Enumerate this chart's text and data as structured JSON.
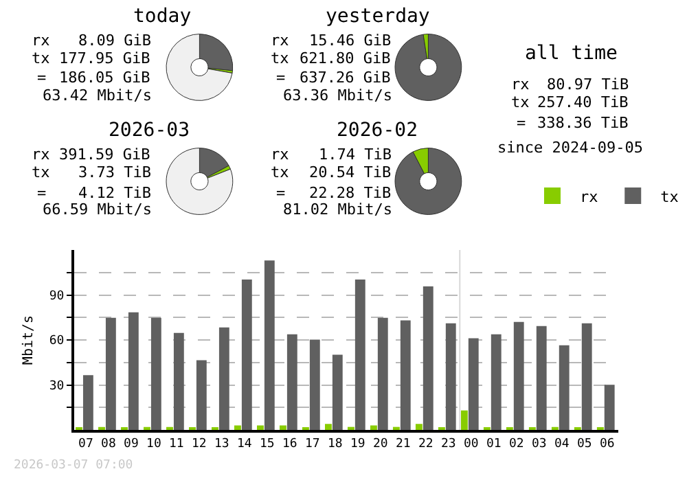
{
  "chart_data": [
    {
      "type": "donut",
      "title": "today",
      "categories": [
        null,
        null,
        null
      ],
      "values": [
        26.6,
        1.2,
        72.2
      ],
      "colors": [
        "#606060",
        "#88cc00",
        "#f0f0f0"
      ],
      "annotations": [
        "rx",
        "8.09 GiB",
        "tx",
        "177.95 GiB",
        "=",
        "186.05 GiB",
        "63.42 Mbit/s"
      ]
    },
    {
      "type": "donut",
      "title": "yesterday",
      "categories": [
        null,
        null
      ],
      "values": [
        97.6,
        2.4
      ],
      "colors": [
        "#606060",
        "#88cc00"
      ],
      "annotations": [
        "rx",
        "15.46 GiB",
        "tx",
        "621.80 GiB",
        "=",
        "637.26 GiB",
        "63.36 Mbit/s"
      ]
    },
    {
      "type": "donut",
      "title": "2026-03",
      "categories": [
        null,
        null,
        null
      ],
      "values": [
        17.2,
        1.8,
        81.0
      ],
      "colors": [
        "#606060",
        "#88cc00",
        "#f0f0f0"
      ],
      "annotations": [
        "rx",
        "391.59 GiB",
        "tx",
        "3.73 TiB",
        "=",
        "4.12 TiB",
        "66.59 Mbit/s"
      ]
    },
    {
      "type": "donut",
      "title": "2026-02",
      "categories": [
        null,
        null
      ],
      "values": [
        92.4,
        7.6
      ],
      "colors": [
        "#606060",
        "#88cc00"
      ],
      "annotations": [
        "rx",
        "1.74 TiB",
        "tx",
        "20.54 TiB",
        "=",
        "22.28 TiB",
        "81.02 Mbit/s"
      ]
    },
    {
      "type": "other",
      "title": "all time",
      "annotations": [
        "rx",
        "80.97 TiB",
        "tx",
        "257.40 TiB",
        "=",
        "338.36 TiB",
        "since 2024-09-05"
      ]
    },
    {
      "type": "bar",
      "ylabel": "Mbit/s",
      "categories": [
        "07",
        "08",
        "09",
        "10",
        "11",
        "12",
        "13",
        "14",
        "15",
        "16",
        "17",
        "18",
        "19",
        "20",
        "21",
        "22",
        "23",
        "00",
        "01",
        "02",
        "03",
        "04",
        "05",
        "06"
      ],
      "series": [
        {
          "name": "rx",
          "color": "#88cc00",
          "values": [
            1,
            2,
            1,
            2,
            2,
            1,
            1,
            3,
            3,
            3,
            1,
            4,
            2,
            3,
            2,
            4,
            1,
            13,
            1,
            1,
            1,
            2,
            1,
            1
          ]
        },
        {
          "name": "tx",
          "color": "#606060",
          "values": [
            36.5,
            74.8,
            78.4,
            74.8,
            64.7,
            46.5,
            68.4,
            100.3,
            113,
            63.8,
            60.2,
            50.2,
            100.3,
            74.8,
            73,
            95.7,
            71.1,
            61.1,
            63.8,
            72,
            69.3,
            56.5,
            71.1,
            30.1
          ]
        }
      ],
      "ylim": [
        0,
        120
      ],
      "yticks": [
        {
          "value": 15,
          "label": null
        },
        30,
        {
          "value": 45,
          "label": null
        },
        60,
        {
          "value": 75,
          "label": null
        },
        90,
        {
          "value": 105,
          "label": null
        }
      ],
      "grid": "y",
      "legend": "top right",
      "ref_lines": [
        {
          "axis": "x",
          "value": "00",
          "color": "#d8d8d8"
        }
      ],
      "annotations": [
        "2026-03-07 07:00"
      ]
    }
  ]
}
